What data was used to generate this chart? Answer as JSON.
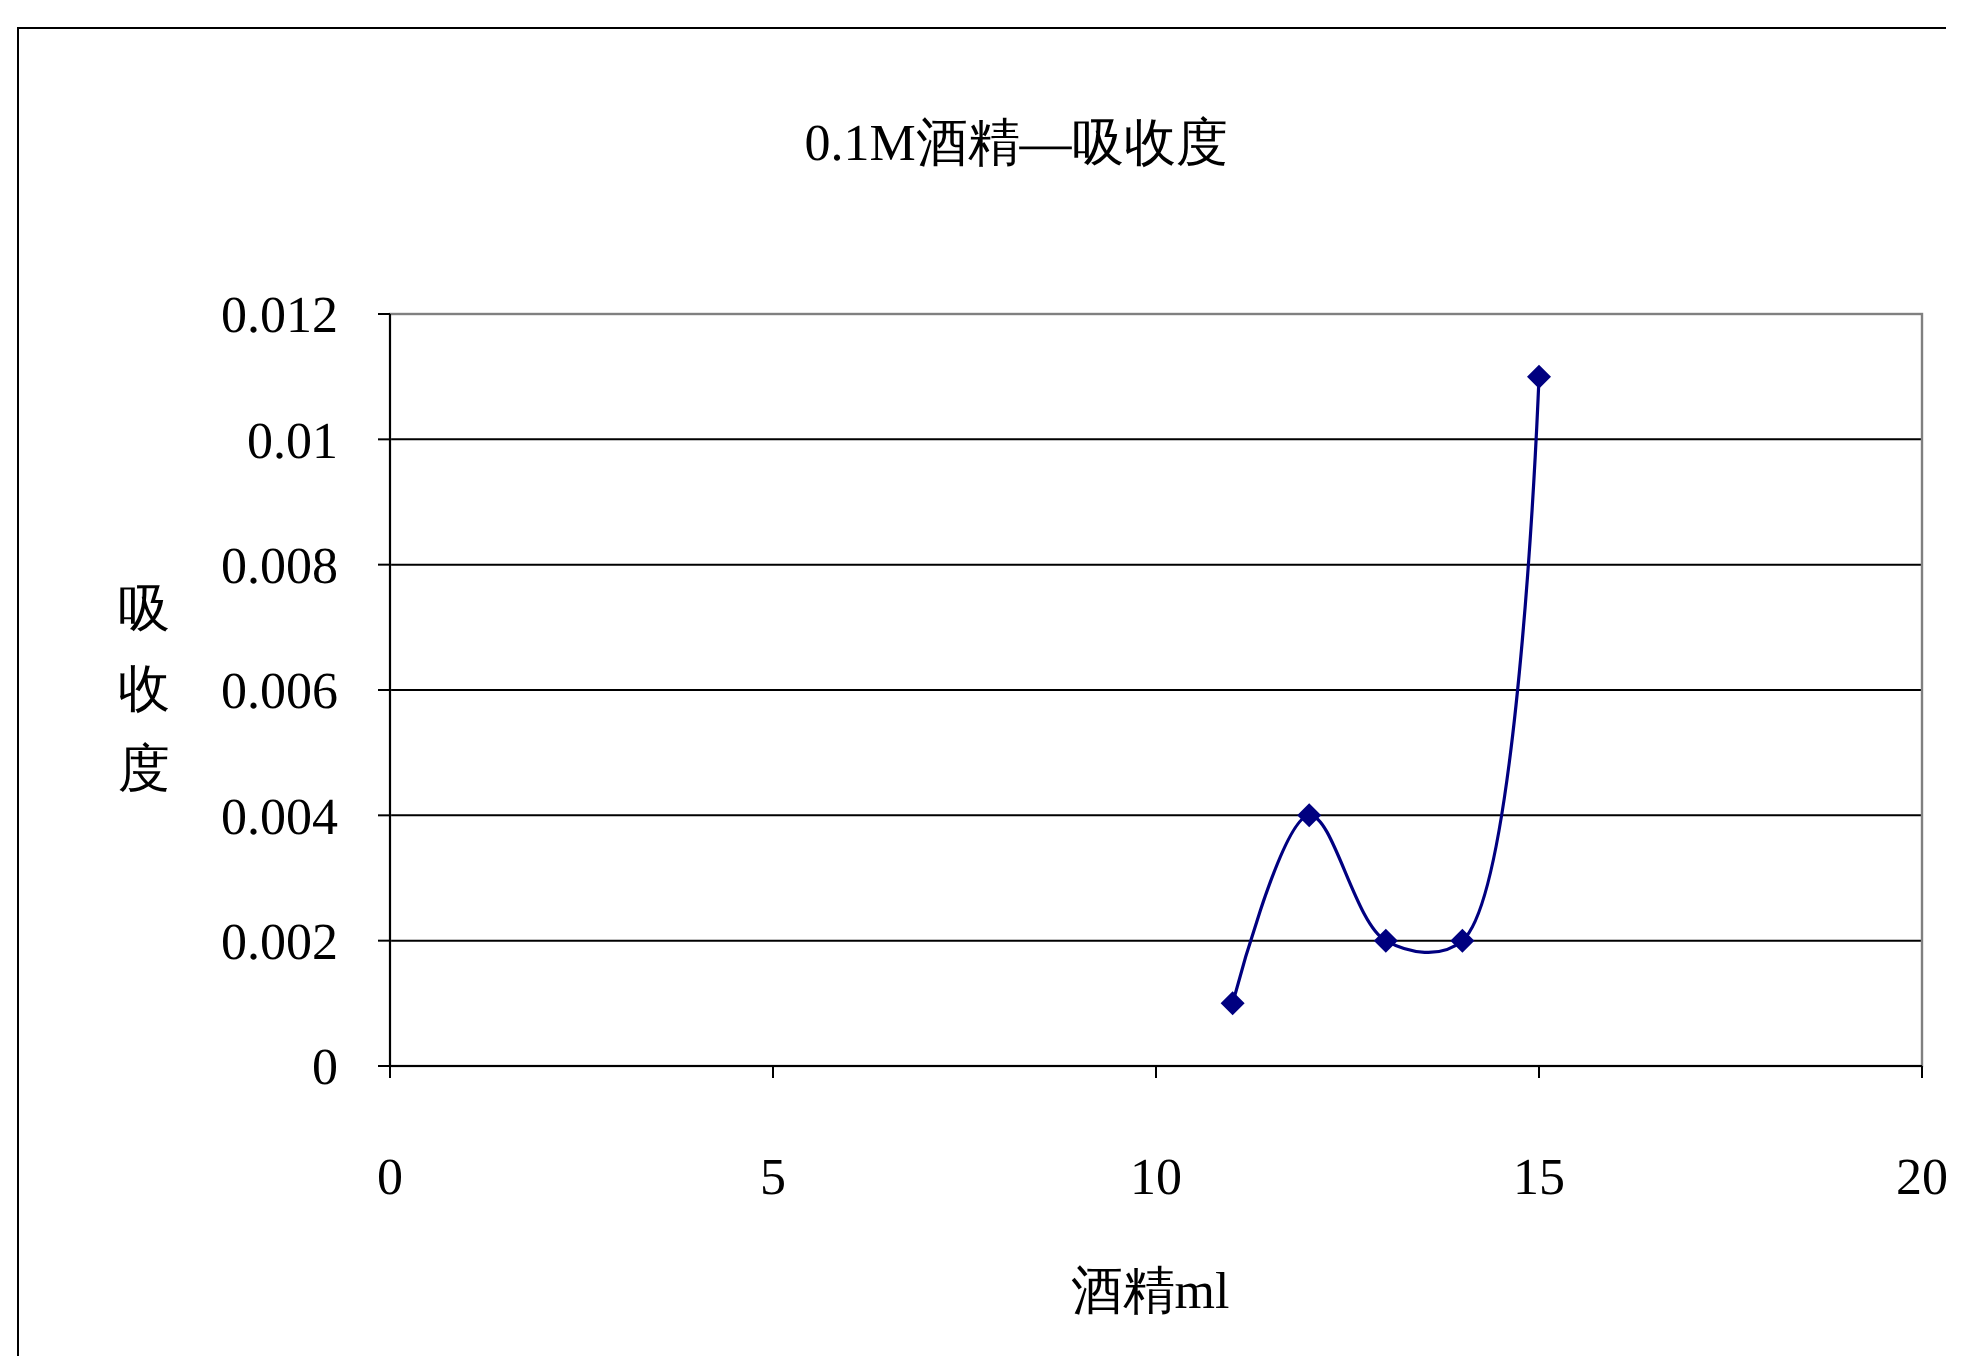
{
  "chart_data": {
    "type": "line",
    "title": "0.1M酒精—吸收度",
    "xlabel": "酒精ml",
    "ylabel": "吸收度",
    "x": [
      11,
      12,
      13,
      14,
      15
    ],
    "series": [
      {
        "color": "#000080",
        "values": [
          0.001,
          0.004,
          0.002,
          0.002,
          0.011
        ]
      }
    ],
    "xlim": [
      0,
      20
    ],
    "xticks": [
      0,
      5,
      10,
      15,
      20
    ],
    "ylim": [
      0,
      0.012
    ],
    "yticks": [
      0,
      0.002,
      0.004,
      0.006,
      0.008,
      0.01,
      0.012
    ],
    "grid": "y",
    "marker": "diamond",
    "line_style": "solid"
  }
}
